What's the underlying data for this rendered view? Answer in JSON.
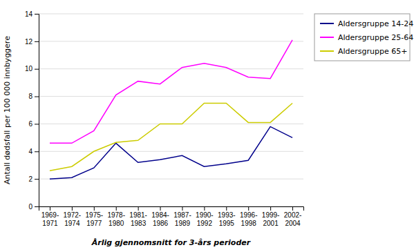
{
  "chart_data": {
    "type": "line",
    "xlabel": "Årlig gjennomsnitt for 3-års perioder",
    "ylabel": "Antall dødsfall per 100 000 innbyggere",
    "categories": [
      "1969-\n1971",
      "1972-\n1974",
      "1975-\n1977",
      "1978-\n1980",
      "1981-\n1983",
      "1984-\n1986",
      "1987-\n1989",
      "1990-\n1992",
      "1993-\n1995",
      "1996-\n1998",
      "1999-\n2001",
      "2002-\n2004"
    ],
    "series": [
      {
        "name": "Aldersgruppe 14-24",
        "color": "#00008B",
        "values": [
          2.0,
          2.1,
          2.8,
          4.6,
          3.2,
          3.4,
          3.7,
          2.9,
          3.1,
          3.35,
          5.8,
          5.0
        ]
      },
      {
        "name": "Aldersgruppe 25-64",
        "color": "#FF00FF",
        "values": [
          4.6,
          4.6,
          5.5,
          8.1,
          9.1,
          8.9,
          10.1,
          10.4,
          10.1,
          9.4,
          9.3,
          12.1
        ]
      },
      {
        "name": "Aldersgruppe 65+",
        "color": "#CCCC00",
        "values": [
          2.6,
          2.9,
          4.0,
          4.65,
          4.8,
          6.0,
          6.0,
          7.5,
          7.5,
          6.1,
          6.1,
          7.5
        ]
      }
    ],
    "ylim": [
      0,
      14
    ],
    "yticks": [
      0,
      2,
      4,
      6,
      8,
      10,
      12,
      14
    ],
    "grid": true,
    "legend": "right"
  }
}
